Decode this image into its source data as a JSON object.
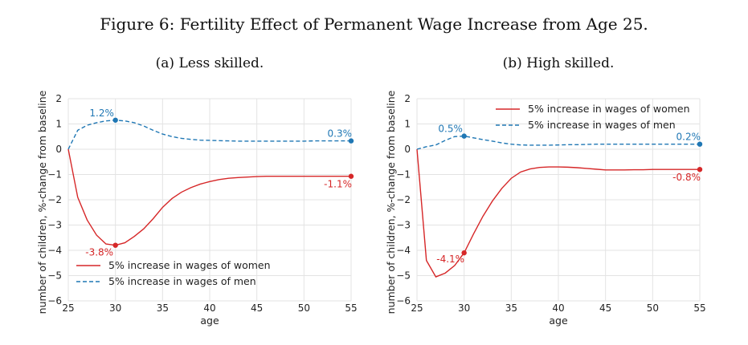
{
  "figure": {
    "title": "Figure 6: Fertility Effect of Permanent Wage Increase from Age 25."
  },
  "chart_data": [
    {
      "type": "line",
      "subtitle": "(a) Less skilled.",
      "xlabel": "age",
      "ylabel": "number of children, %-change from baseline",
      "xlim": [
        25,
        55
      ],
      "ylim": [
        -6,
        2
      ],
      "xticks": [
        25,
        30,
        35,
        40,
        45,
        50,
        55
      ],
      "yticks": [
        2,
        1,
        0,
        -1,
        -2,
        -3,
        -4,
        -5,
        -6
      ],
      "ytick_labels": [
        "2",
        "1",
        "0",
        "−1",
        "−2",
        "−3",
        "−4",
        "−5",
        "−6"
      ],
      "grid": true,
      "legend_position": "lower-left",
      "series": [
        {
          "name": "5% increase in wages of women",
          "color": "#d62728",
          "style": "solid",
          "x": [
            25,
            26,
            27,
            28,
            29,
            30,
            31,
            32,
            33,
            34,
            35,
            36,
            37,
            38,
            39,
            40,
            41,
            42,
            43,
            44,
            45,
            46,
            47,
            48,
            49,
            50,
            51,
            52,
            53,
            54,
            55
          ],
          "y": [
            0,
            -1.9,
            -2.8,
            -3.4,
            -3.75,
            -3.8,
            -3.7,
            -3.45,
            -3.15,
            -2.75,
            -2.3,
            -1.95,
            -1.7,
            -1.52,
            -1.38,
            -1.28,
            -1.2,
            -1.15,
            -1.12,
            -1.1,
            -1.08,
            -1.07,
            -1.07,
            -1.07,
            -1.07,
            -1.07,
            -1.07,
            -1.07,
            -1.07,
            -1.07,
            -1.07
          ],
          "markers": [
            {
              "x": 30,
              "y": -3.8,
              "label": "-3.8%"
            },
            {
              "x": 55,
              "y": -1.07,
              "label": "-1.1%"
            }
          ]
        },
        {
          "name": "5% increase in wages of men",
          "color": "#1f77b4",
          "style": "dashed",
          "x": [
            25,
            26,
            27,
            28,
            29,
            30,
            31,
            32,
            33,
            34,
            35,
            36,
            37,
            38,
            39,
            40,
            41,
            42,
            43,
            44,
            45,
            46,
            47,
            48,
            49,
            50,
            51,
            52,
            53,
            54,
            55
          ],
          "y": [
            0,
            0.75,
            0.95,
            1.05,
            1.12,
            1.15,
            1.12,
            1.05,
            0.92,
            0.75,
            0.6,
            0.5,
            0.43,
            0.39,
            0.36,
            0.35,
            0.34,
            0.33,
            0.32,
            0.32,
            0.32,
            0.32,
            0.32,
            0.32,
            0.32,
            0.32,
            0.33,
            0.33,
            0.33,
            0.33,
            0.33
          ],
          "markers": [
            {
              "x": 30,
              "y": 1.15,
              "label": "1.2%"
            },
            {
              "x": 55,
              "y": 0.33,
              "label": "0.3%"
            }
          ]
        }
      ]
    },
    {
      "type": "line",
      "subtitle": "(b) High skilled.",
      "xlabel": "age",
      "ylabel": "number of children, %-change from baseline",
      "xlim": [
        25,
        55
      ],
      "ylim": [
        -6,
        2
      ],
      "xticks": [
        25,
        30,
        35,
        40,
        45,
        50,
        55
      ],
      "yticks": [
        2,
        1,
        0,
        -1,
        -2,
        -3,
        -4,
        -5,
        -6
      ],
      "ytick_labels": [
        "2",
        "1",
        "0",
        "−1",
        "−2",
        "−3",
        "−4",
        "−5",
        "−6"
      ],
      "grid": true,
      "legend_position": "upper-right",
      "series": [
        {
          "name": "5% increase in wages of women",
          "color": "#d62728",
          "style": "solid",
          "x": [
            25,
            26,
            27,
            28,
            29,
            30,
            31,
            32,
            33,
            34,
            35,
            36,
            37,
            38,
            39,
            40,
            41,
            42,
            43,
            44,
            45,
            46,
            47,
            48,
            49,
            50,
            51,
            52,
            53,
            54,
            55
          ],
          "y": [
            0,
            -4.4,
            -5.05,
            -4.9,
            -4.6,
            -4.1,
            -3.35,
            -2.65,
            -2.05,
            -1.55,
            -1.15,
            -0.9,
            -0.78,
            -0.72,
            -0.7,
            -0.7,
            -0.71,
            -0.73,
            -0.76,
            -0.79,
            -0.82,
            -0.82,
            -0.82,
            -0.81,
            -0.81,
            -0.8,
            -0.8,
            -0.8,
            -0.8,
            -0.8,
            -0.8
          ],
          "markers": [
            {
              "x": 30,
              "y": -4.1,
              "label": "-4.1%"
            },
            {
              "x": 55,
              "y": -0.8,
              "label": "-0.8%"
            }
          ]
        },
        {
          "name": "5% increase in wages of men",
          "color": "#1f77b4",
          "style": "dashed",
          "x": [
            25,
            26,
            27,
            28,
            29,
            30,
            31,
            32,
            33,
            34,
            35,
            36,
            37,
            38,
            39,
            40,
            41,
            42,
            43,
            44,
            45,
            46,
            47,
            48,
            49,
            50,
            51,
            52,
            53,
            54,
            55
          ],
          "y": [
            0,
            0.1,
            0.17,
            0.35,
            0.5,
            0.52,
            0.45,
            0.38,
            0.32,
            0.25,
            0.2,
            0.17,
            0.16,
            0.16,
            0.16,
            0.17,
            0.18,
            0.18,
            0.19,
            0.2,
            0.2,
            0.2,
            0.2,
            0.2,
            0.2,
            0.2,
            0.2,
            0.2,
            0.2,
            0.2,
            0.2
          ],
          "markers": [
            {
              "x": 30,
              "y": 0.52,
              "label": "0.5%"
            },
            {
              "x": 55,
              "y": 0.2,
              "label": "0.2%"
            }
          ]
        }
      ]
    }
  ]
}
